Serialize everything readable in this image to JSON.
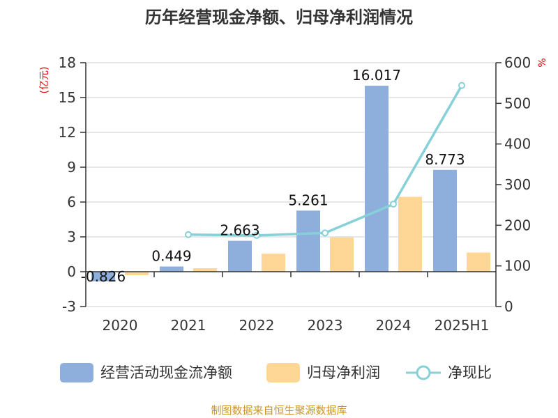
{
  "chart_data": {
    "type": "bar",
    "title": "历年经营现金净额、归母净利润情况",
    "left_axis_unit": "(亿元)",
    "right_axis_unit": "%",
    "categories": [
      "2020",
      "2021",
      "2022",
      "2023",
      "2024",
      "2025H1"
    ],
    "left_ylim": [
      -3,
      18
    ],
    "left_yticks": [
      -3,
      0,
      3,
      6,
      9,
      12,
      15,
      18
    ],
    "right_ylim": [
      0,
      600
    ],
    "right_yticks": [
      0,
      100,
      200,
      300,
      400,
      500,
      600
    ],
    "grid": true,
    "legend_position": "bottom",
    "series": [
      {
        "name": "经营活动现金流净额",
        "kind": "bar",
        "axis": "left",
        "color": "#8eaedc",
        "values": [
          -0.826,
          0.449,
          2.663,
          5.261,
          16.017,
          8.773
        ],
        "labels": [
          "-0.826",
          "0.449",
          "2.663",
          "5.261",
          "16.017",
          "8.773"
        ]
      },
      {
        "name": "归母净利润",
        "kind": "bar",
        "axis": "left",
        "color": "#fed797",
        "values": [
          -0.3,
          0.3,
          1.55,
          2.95,
          6.45,
          1.65
        ]
      },
      {
        "name": "净现比",
        "kind": "line",
        "axis": "right",
        "color": "#86d1d8",
        "values": [
          null,
          177,
          175,
          181,
          252,
          544
        ]
      }
    ]
  },
  "footer": {
    "source": "制图数据来自恒生聚源数据库"
  }
}
